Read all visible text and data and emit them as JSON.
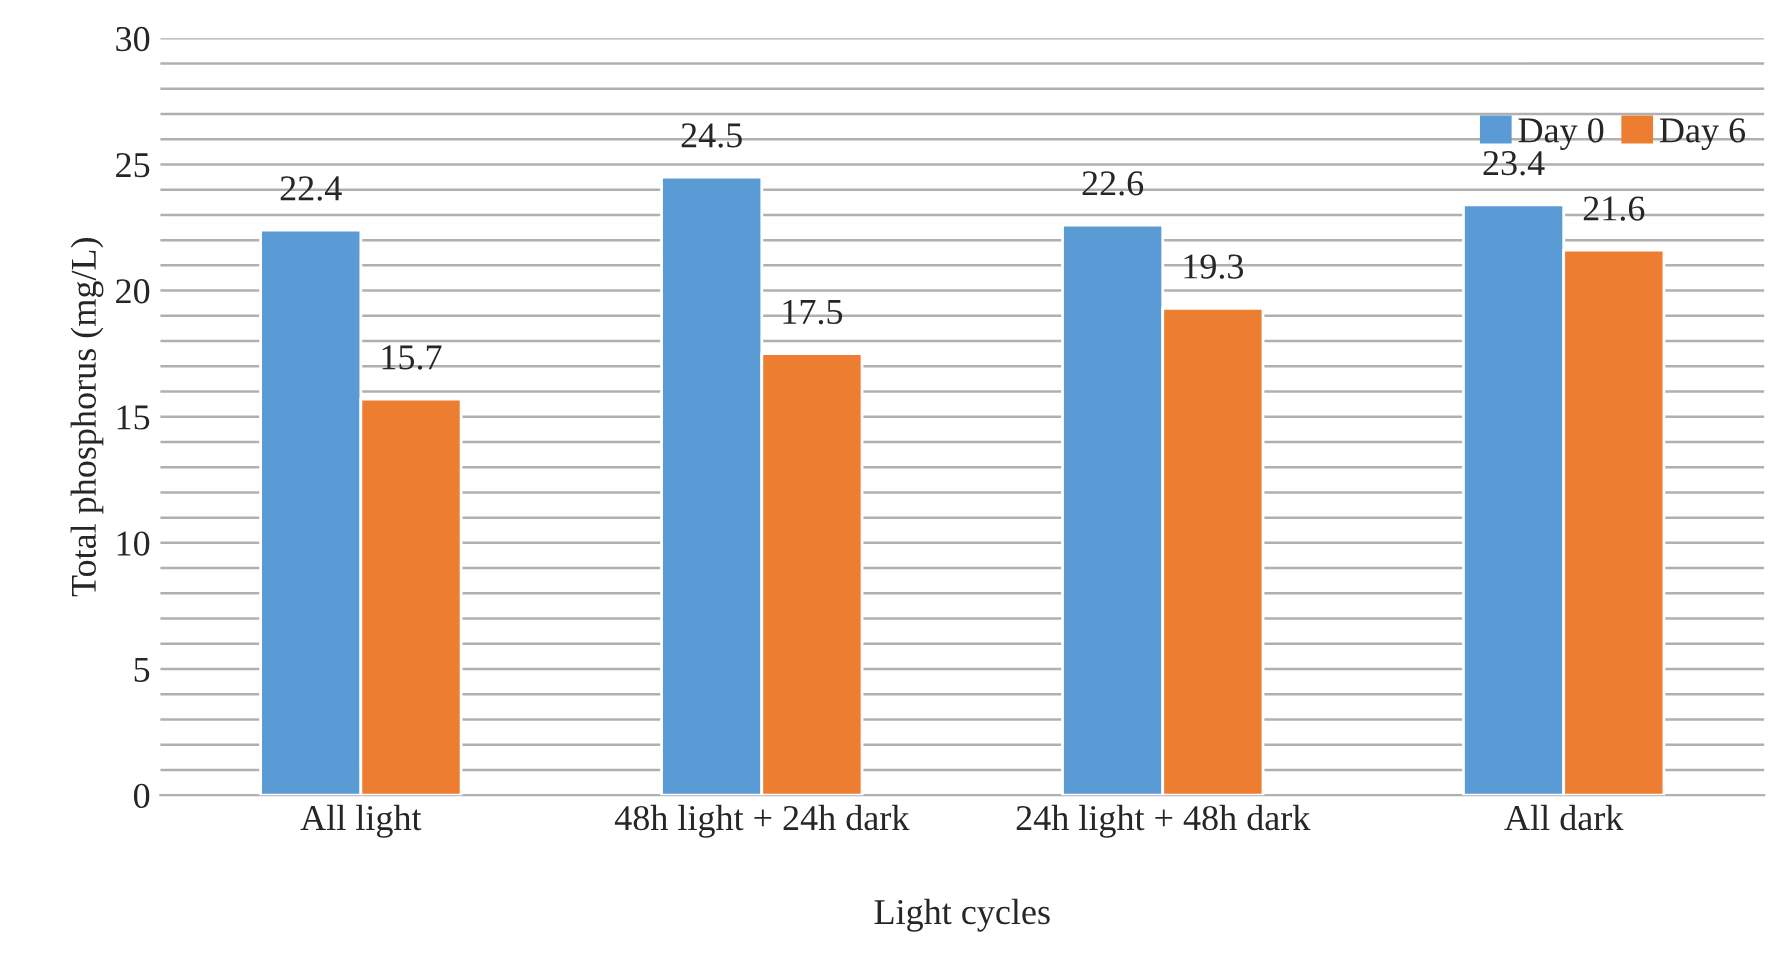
{
  "chart_data": {
    "type": "bar",
    "xlabel": "Light cycles",
    "ylabel": "Total phosphorus (mg/L)",
    "categories": [
      "All light",
      "48h light + 24h dark",
      "24h light + 48h dark",
      "All dark"
    ],
    "series": [
      {
        "name": "Day 0",
        "color": "#5b9bd5",
        "values": [
          22.4,
          24.5,
          22.6,
          23.4
        ]
      },
      {
        "name": "Day 6",
        "color": "#ed7d31",
        "values": [
          15.7,
          17.5,
          19.3,
          21.6
        ]
      }
    ],
    "ylim": [
      0,
      30
    ],
    "yticks": [
      0,
      {
        "value": 1,
        "label": null
      },
      {
        "value": 2,
        "label": null
      },
      {
        "value": 3,
        "label": null
      },
      {
        "value": 4,
        "label": null
      },
      5,
      {
        "value": 6,
        "label": null
      },
      {
        "value": 7,
        "label": null
      },
      {
        "value": 8,
        "label": null
      },
      {
        "value": 9,
        "label": null
      },
      10,
      {
        "value": 11,
        "label": null
      },
      {
        "value": 12,
        "label": null
      },
      {
        "value": 13,
        "label": null
      },
      {
        "value": 14,
        "label": null
      },
      15,
      {
        "value": 16,
        "label": null
      },
      {
        "value": 17,
        "label": null
      },
      {
        "value": 18,
        "label": null
      },
      {
        "value": 19,
        "label": null
      },
      20,
      {
        "value": 21,
        "label": null
      },
      {
        "value": 22,
        "label": null
      },
      {
        "value": 23,
        "label": null
      },
      {
        "value": 24,
        "label": null
      },
      25,
      {
        "value": 26,
        "label": null
      },
      {
        "value": 27,
        "label": null
      },
      {
        "value": 28,
        "label": null
      },
      {
        "value": 29,
        "label": null
      },
      30
    ],
    "grid": "y",
    "legend": "top right",
    "data_labels": true
  }
}
